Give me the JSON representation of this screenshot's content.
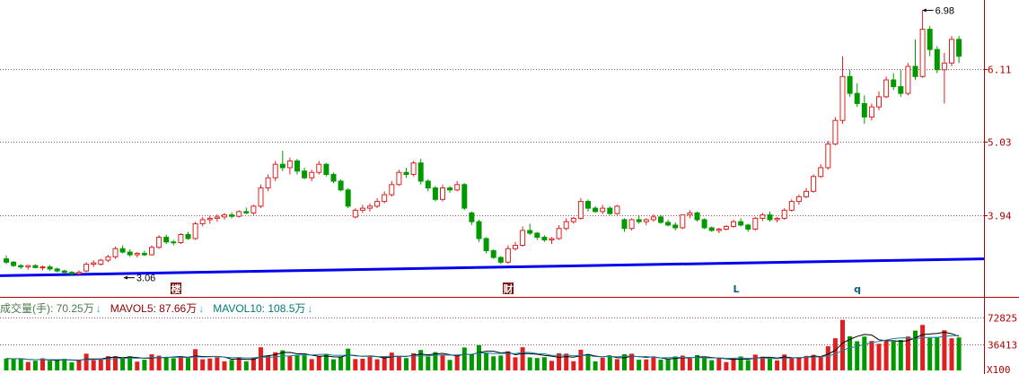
{
  "chart_data": {
    "type": "candlestick",
    "y_ticks": [
      "6.11",
      "5.03",
      "3.94"
    ],
    "y_tick_values": [
      6.11,
      5.03,
      3.94
    ],
    "ylim": [
      2.75,
      7.08
    ],
    "grid": true,
    "annotations": {
      "high_label": "6.98",
      "low_label": "3.06"
    },
    "event_markers": [
      {
        "id": "m1",
        "text": "楼",
        "style": "boxed"
      },
      {
        "id": "m2",
        "text": "财",
        "style": "boxed"
      },
      {
        "id": "m3",
        "text": "L",
        "style": "plain"
      },
      {
        "id": "m4",
        "text": "q",
        "style": "plain"
      }
    ],
    "trendline": {
      "color": "#0000ee",
      "from": [
        0,
        3.05
      ],
      "to": [
        131,
        3.3
      ]
    },
    "colors": {
      "up": "#e02020",
      "down": "#009900",
      "ma5": "#000000",
      "ma10": "#1a7fa0"
    },
    "candles": [
      [
        3.3,
        3.35,
        3.22,
        3.25
      ],
      [
        3.25,
        3.27,
        3.18,
        3.2
      ],
      [
        3.2,
        3.22,
        3.15,
        3.18
      ],
      [
        3.18,
        3.21,
        3.14,
        3.2
      ],
      [
        3.2,
        3.22,
        3.16,
        3.17
      ],
      [
        3.17,
        3.2,
        3.13,
        3.18
      ],
      [
        3.18,
        3.21,
        3.12,
        3.15
      ],
      [
        3.15,
        3.17,
        3.1,
        3.12
      ],
      [
        3.12,
        3.14,
        3.08,
        3.1
      ],
      [
        3.1,
        3.12,
        3.06,
        3.08
      ],
      [
        3.08,
        3.13,
        3.06,
        3.1
      ],
      [
        3.12,
        3.25,
        3.1,
        3.22
      ],
      [
        3.22,
        3.28,
        3.18,
        3.24
      ],
      [
        3.22,
        3.3,
        3.2,
        3.28
      ],
      [
        3.28,
        3.36,
        3.25,
        3.33
      ],
      [
        3.33,
        3.48,
        3.3,
        3.45
      ],
      [
        3.45,
        3.5,
        3.38,
        3.4
      ],
      [
        3.4,
        3.44,
        3.33,
        3.36
      ],
      [
        3.36,
        3.4,
        3.32,
        3.38
      ],
      [
        3.38,
        3.42,
        3.34,
        3.36
      ],
      [
        3.36,
        3.5,
        3.35,
        3.47
      ],
      [
        3.47,
        3.65,
        3.45,
        3.62
      ],
      [
        3.62,
        3.66,
        3.52,
        3.55
      ],
      [
        3.55,
        3.58,
        3.5,
        3.54
      ],
      [
        3.54,
        3.68,
        3.52,
        3.66
      ],
      [
        3.66,
        3.7,
        3.58,
        3.6
      ],
      [
        3.6,
        3.85,
        3.58,
        3.82
      ],
      [
        3.82,
        3.92,
        3.78,
        3.88
      ],
      [
        3.88,
        3.94,
        3.82,
        3.9
      ],
      [
        3.9,
        3.96,
        3.85,
        3.92
      ],
      [
        3.92,
        3.98,
        3.88,
        3.95
      ],
      [
        3.95,
        3.99,
        3.9,
        3.93
      ],
      [
        3.93,
        4.02,
        3.91,
        4.0
      ],
      [
        4.0,
        4.06,
        3.96,
        3.98
      ],
      [
        3.98,
        4.1,
        3.95,
        4.08
      ],
      [
        4.08,
        4.4,
        4.05,
        4.35
      ],
      [
        4.35,
        4.55,
        4.3,
        4.5
      ],
      [
        4.5,
        4.75,
        4.45,
        4.7
      ],
      [
        4.7,
        4.9,
        4.6,
        4.65
      ],
      [
        4.65,
        4.8,
        4.55,
        4.75
      ],
      [
        4.75,
        4.78,
        4.55,
        4.6
      ],
      [
        4.6,
        4.65,
        4.48,
        4.5
      ],
      [
        4.5,
        4.62,
        4.45,
        4.58
      ],
      [
        4.58,
        4.75,
        4.55,
        4.7
      ],
      [
        4.7,
        4.72,
        4.52,
        4.55
      ],
      [
        4.55,
        4.58,
        4.42,
        4.45
      ],
      [
        4.45,
        4.48,
        4.3,
        4.32
      ],
      [
        4.32,
        4.35,
        4.05,
        4.08
      ],
      [
        3.92,
        4.05,
        3.9,
        4.02
      ],
      [
        4.02,
        4.1,
        3.98,
        4.05
      ],
      [
        4.05,
        4.12,
        4.0,
        4.08
      ],
      [
        4.08,
        4.2,
        4.05,
        4.15
      ],
      [
        4.15,
        4.3,
        4.12,
        4.25
      ],
      [
        4.25,
        4.45,
        4.22,
        4.4
      ],
      [
        4.4,
        4.62,
        4.38,
        4.58
      ],
      [
        4.58,
        4.65,
        4.5,
        4.55
      ],
      [
        4.55,
        4.75,
        4.52,
        4.72
      ],
      [
        4.72,
        4.78,
        4.4,
        4.45
      ],
      [
        4.45,
        4.48,
        4.3,
        4.35
      ],
      [
        4.35,
        4.38,
        4.15,
        4.18
      ],
      [
        4.18,
        4.4,
        4.15,
        4.35
      ],
      [
        4.35,
        4.38,
        4.28,
        4.32
      ],
      [
        4.32,
        4.45,
        4.3,
        4.4
      ],
      [
        4.4,
        4.42,
        4.02,
        4.05
      ],
      [
        3.98,
        4.0,
        3.8,
        3.85
      ],
      [
        3.85,
        3.88,
        3.55,
        3.6
      ],
      [
        3.6,
        3.62,
        3.38,
        3.42
      ],
      [
        3.42,
        3.44,
        3.3,
        3.32
      ],
      [
        3.32,
        3.34,
        3.22,
        3.25
      ],
      [
        3.25,
        3.5,
        3.23,
        3.45
      ],
      [
        3.45,
        3.55,
        3.42,
        3.5
      ],
      [
        3.5,
        3.78,
        3.48,
        3.72
      ],
      [
        3.72,
        3.82,
        3.65,
        3.68
      ],
      [
        3.68,
        3.7,
        3.58,
        3.62
      ],
      [
        3.62,
        3.65,
        3.55,
        3.58
      ],
      [
        3.58,
        3.62,
        3.52,
        3.6
      ],
      [
        3.6,
        3.8,
        3.58,
        3.75
      ],
      [
        3.75,
        3.9,
        3.72,
        3.85
      ],
      [
        3.85,
        3.92,
        3.82,
        3.9
      ],
      [
        3.9,
        4.2,
        3.88,
        4.15
      ],
      [
        4.15,
        4.18,
        4.0,
        4.05
      ],
      [
        4.05,
        4.08,
        3.98,
        4.0
      ],
      [
        4.0,
        4.1,
        3.96,
        4.05
      ],
      [
        4.05,
        4.08,
        3.95,
        3.97
      ],
      [
        3.97,
        4.1,
        3.95,
        4.08
      ],
      [
        3.88,
        3.9,
        3.7,
        3.75
      ],
      [
        3.75,
        3.9,
        3.72,
        3.88
      ],
      [
        3.88,
        3.95,
        3.82,
        3.85
      ],
      [
        3.85,
        3.9,
        3.8,
        3.88
      ],
      [
        3.88,
        3.96,
        3.85,
        3.92
      ],
      [
        3.92,
        3.95,
        3.82,
        3.84
      ],
      [
        3.84,
        3.88,
        3.78,
        3.8
      ],
      [
        3.8,
        3.84,
        3.72,
        3.76
      ],
      [
        3.76,
        3.96,
        3.74,
        3.95
      ],
      [
        3.95,
        4.02,
        3.9,
        3.98
      ],
      [
        3.98,
        4.0,
        3.85,
        3.88
      ],
      [
        3.88,
        3.9,
        3.74,
        3.76
      ],
      [
        3.76,
        3.78,
        3.7,
        3.72
      ],
      [
        3.72,
        3.76,
        3.68,
        3.74
      ],
      [
        3.74,
        3.8,
        3.72,
        3.78
      ],
      [
        3.78,
        3.88,
        3.76,
        3.85
      ],
      [
        3.85,
        3.9,
        3.78,
        3.8
      ],
      [
        3.8,
        3.82,
        3.7,
        3.74
      ],
      [
        3.74,
        3.92,
        3.72,
        3.9
      ],
      [
        3.9,
        3.98,
        3.86,
        3.95
      ],
      [
        3.95,
        4.0,
        3.85,
        3.88
      ],
      [
        3.88,
        3.92,
        3.84,
        3.9
      ],
      [
        3.9,
        4.05,
        3.88,
        4.02
      ],
      [
        4.02,
        4.18,
        4.0,
        4.15
      ],
      [
        4.15,
        4.25,
        4.1,
        4.22
      ],
      [
        4.22,
        4.35,
        4.2,
        4.3
      ],
      [
        4.3,
        4.55,
        4.28,
        4.52
      ],
      [
        4.52,
        4.7,
        4.5,
        4.65
      ],
      [
        4.65,
        5.05,
        4.62,
        5.0
      ],
      [
        5.0,
        5.4,
        4.98,
        5.35
      ],
      [
        5.35,
        6.3,
        5.3,
        6.0
      ],
      [
        6.0,
        6.1,
        5.7,
        5.75
      ],
      [
        5.75,
        5.9,
        5.55,
        5.6
      ],
      [
        5.6,
        5.72,
        5.3,
        5.4
      ],
      [
        5.4,
        5.6,
        5.35,
        5.55
      ],
      [
        5.55,
        5.78,
        5.5,
        5.7
      ],
      [
        5.7,
        6.0,
        5.68,
        5.95
      ],
      [
        5.95,
        6.05,
        5.8,
        5.85
      ],
      [
        5.85,
        6.1,
        5.7,
        5.75
      ],
      [
        5.75,
        6.2,
        5.72,
        6.15
      ],
      [
        6.15,
        6.55,
        5.95,
        6.0
      ],
      [
        6.0,
        6.98,
        5.98,
        6.7
      ],
      [
        6.7,
        6.75,
        6.3,
        6.4
      ],
      [
        6.4,
        6.45,
        6.05,
        6.1
      ],
      [
        6.1,
        6.35,
        5.6,
        6.2
      ],
      [
        6.2,
        6.6,
        6.15,
        6.55
      ],
      [
        6.55,
        6.6,
        6.2,
        6.3
      ]
    ],
    "volume": {
      "ticks": [
        "72825",
        "36413"
      ],
      "tick_values": [
        72825,
        36413
      ],
      "ylim": [
        0,
        83000
      ],
      "unit_label": "X100",
      "legend": [
        {
          "label": "成交量(手): 70.25万",
          "arrow": "↓"
        },
        {
          "label": "MAVOL5: 87.66万",
          "arrow": "↓"
        },
        {
          "label": "MAVOL10: 108.5万",
          "arrow": "↓"
        }
      ]
    }
  }
}
